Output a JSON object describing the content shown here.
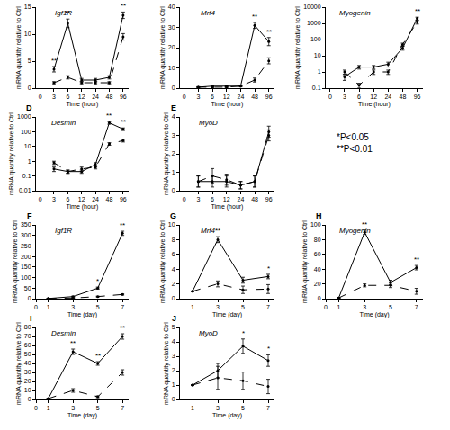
{
  "notes": [
    "*P<0.05",
    "**P<0.01"
  ],
  "chart_data": [
    {
      "type": "line",
      "panel": "A",
      "title": "Igf1R",
      "x_label": "Time (hour)",
      "y_label": "mRNA quantity relative to Ctrl",
      "categories": [
        "0",
        "3",
        "6",
        "12",
        "24",
        "48",
        "96"
      ],
      "series": [
        {
          "color": "#000000",
          "line_style": "solid",
          "marker": "circle",
          "values": [
            null,
            3.5,
            12,
            1.5,
            1.5,
            2,
            13.5
          ],
          "errors": [
            null,
            0.5,
            0.8,
            0.3,
            0.3,
            0.3,
            0.6
          ]
        },
        {
          "color": "#000000",
          "line_style": "dashed",
          "marker": "circle",
          "values": [
            null,
            1,
            2,
            1,
            1,
            1,
            9.5
          ],
          "errors": [
            null,
            0.2,
            0.3,
            0.2,
            0.2,
            0.2,
            0.6
          ]
        }
      ],
      "ylim": [
        0,
        15
      ],
      "yticks": [
        0,
        5,
        10,
        15
      ],
      "grid": false,
      "annotations": [
        {
          "x": "3",
          "text": "**"
        },
        {
          "x": "6",
          "text": "**"
        },
        {
          "x": "96",
          "text": "**"
        }
      ]
    },
    {
      "type": "line",
      "panel": "B",
      "title": "Mrf4",
      "x_label": "Time (hour)",
      "y_label": "mRNA quantity relative to Ctrl",
      "categories": [
        "0",
        "3",
        "6",
        "12",
        "24",
        "48",
        "96"
      ],
      "series": [
        {
          "color": "#000000",
          "line_style": "solid",
          "marker": "circle",
          "values": [
            null,
            0.5,
            1,
            1,
            1,
            31,
            23
          ],
          "errors": [
            null,
            0.2,
            0.2,
            0.2,
            0.2,
            1.5,
            2
          ]
        },
        {
          "color": "#000000",
          "line_style": "dashed",
          "marker": "circle",
          "values": [
            null,
            0.5,
            0.5,
            0.5,
            1,
            4,
            13.5
          ],
          "errors": [
            null,
            0.2,
            0.2,
            0.2,
            0.2,
            1,
            1.5
          ]
        }
      ],
      "ylim": [
        0,
        40
      ],
      "yticks": [
        0,
        10,
        20,
        30,
        40
      ],
      "grid": false,
      "annotations": [
        {
          "x": "48",
          "text": "**"
        },
        {
          "x": "96",
          "text": "**"
        }
      ]
    },
    {
      "type": "line",
      "panel": "C",
      "title": "Myogenin",
      "x_label": "Time (hour)",
      "y_label": "mRNA quantity relative to Ctrl",
      "categories": [
        "0",
        "3",
        "6",
        "12",
        "24",
        "48",
        "96"
      ],
      "series": [
        {
          "color": "#000000",
          "line_style": "solid",
          "marker": "circle",
          "values": [
            null,
            0.5,
            2,
            2,
            3,
            30,
            2000
          ],
          "errors": [
            null,
            0.2,
            0.5,
            0.5,
            1,
            8,
            400
          ]
        },
        {
          "color": "#000000",
          "line_style": "dashed",
          "marker": "circle",
          "values": [
            null,
            1,
            0.15,
            1,
            1,
            50,
            1200
          ],
          "errors": [
            null,
            0.3,
            0.05,
            0.3,
            0.3,
            10,
            300
          ]
        }
      ],
      "log": "y",
      "ylim": [
        0.1,
        10000
      ],
      "yticks": [
        0.1,
        1,
        10,
        100,
        1000,
        10000
      ],
      "grid": false,
      "annotations": [
        {
          "x": "96",
          "text": "**"
        }
      ]
    },
    {
      "type": "line",
      "panel": "D",
      "title": "Desmin",
      "x_label": "Time (hour)",
      "y_label": "mRNA quantity relative to Ctrl",
      "categories": [
        "0",
        "3",
        "6",
        "12",
        "24",
        "48",
        "96"
      ],
      "series": [
        {
          "color": "#000000",
          "line_style": "solid",
          "marker": "circle",
          "values": [
            null,
            0.3,
            0.2,
            0.2,
            0.6,
            400,
            150
          ],
          "errors": [
            null,
            0.1,
            0.05,
            0.05,
            0.2,
            80,
            30
          ]
        },
        {
          "color": "#000000",
          "line_style": "dashed",
          "marker": "circle",
          "values": [
            null,
            0.8,
            0.2,
            0.3,
            0.4,
            15,
            25
          ],
          "errors": [
            null,
            0.2,
            0.05,
            0.1,
            0.1,
            3,
            5
          ]
        }
      ],
      "log": "y",
      "ylim": [
        0.01,
        1000
      ],
      "yticks": [
        0.01,
        0.1,
        1,
        10,
        100,
        1000
      ],
      "grid": false,
      "annotations": [
        {
          "x": "48",
          "text": "**"
        },
        {
          "x": "96",
          "text": "**"
        }
      ]
    },
    {
      "type": "line",
      "panel": "E",
      "title": "MyoD",
      "x_label": "Time (hour)",
      "y_label": "mRNA quantity relative to Ctrl",
      "categories": [
        "0",
        "3",
        "6",
        "12",
        "24",
        "48",
        "96"
      ],
      "series": [
        {
          "color": "#000000",
          "line_style": "solid",
          "marker": "circle",
          "values": [
            null,
            0.5,
            0.5,
            0.5,
            0.3,
            0.5,
            3.2
          ],
          "errors": [
            null,
            0.3,
            0.3,
            0.3,
            0.2,
            0.3,
            0.3
          ]
        },
        {
          "color": "#000000",
          "line_style": "dashed",
          "marker": "circle",
          "values": [
            null,
            0.5,
            0.8,
            0.6,
            0.3,
            0.5,
            3
          ],
          "errors": [
            null,
            0.3,
            0.4,
            0.3,
            0.2,
            0.3,
            0.3
          ]
        }
      ],
      "ylim": [
        0,
        4
      ],
      "yticks": [
        0,
        1,
        2,
        3,
        4
      ],
      "grid": false
    },
    {
      "type": "line",
      "panel": "F",
      "title": "Igf1R",
      "x_label": "Time (day)",
      "y_label": "mRNA quantity relative to Ctrl",
      "x": [
        1,
        3,
        5,
        7
      ],
      "series": [
        {
          "color": "#000000",
          "line_style": "solid",
          "marker": "circle",
          "values": [
            1,
            10,
            50,
            310
          ],
          "errors": [
            0,
            2,
            5,
            10
          ]
        },
        {
          "color": "#000000",
          "line_style": "dashed",
          "marker": "circle",
          "values": [
            1,
            3,
            10,
            20
          ],
          "errors": [
            0,
            1,
            2,
            3
          ]
        }
      ],
      "xlim": [
        0,
        7.5
      ],
      "xticks": [
        0,
        1,
        3,
        5,
        7
      ],
      "ylim": [
        0,
        350
      ],
      "yticks": [
        0,
        50,
        100,
        150,
        200,
        250,
        300,
        350
      ],
      "grid": false,
      "annotations": [
        {
          "x": 5,
          "text": "*"
        },
        {
          "x": 7,
          "text": "**"
        }
      ]
    },
    {
      "type": "line",
      "panel": "G",
      "title": "Mrf4",
      "x_label": "Time (day)",
      "y_label": "mRNA quantity relative to Ctrl",
      "x": [
        1,
        3,
        5,
        7
      ],
      "series": [
        {
          "color": "#000000",
          "line_style": "solid",
          "marker": "circle",
          "values": [
            1,
            8,
            2.5,
            3
          ],
          "errors": [
            0,
            0.4,
            0.4,
            0.3
          ]
        },
        {
          "color": "#000000",
          "line_style": "dashed",
          "marker": "circle",
          "values": [
            1,
            2,
            1.2,
            1.3
          ],
          "errors": [
            0,
            0.4,
            0.5,
            0.6
          ]
        }
      ],
      "xlim": [
        0,
        7.5
      ],
      "xticks": [
        1,
        3,
        5,
        7
      ],
      "ylim": [
        0,
        10
      ],
      "yticks": [
        0,
        2,
        4,
        6,
        8,
        10
      ],
      "grid": false,
      "annotations": [
        {
          "x": 3,
          "text": "**"
        },
        {
          "x": 7,
          "text": "*"
        }
      ]
    },
    {
      "type": "line",
      "panel": "H",
      "title": "Myogenin",
      "x_label": "Time (day)",
      "y_label": "mRNA quantity relative to Ctrl",
      "x": [
        1,
        3,
        5,
        7
      ],
      "series": [
        {
          "color": "#000000",
          "line_style": "solid",
          "marker": "circle",
          "values": [
            1,
            90,
            22,
            42
          ],
          "errors": [
            0,
            3,
            3,
            3
          ]
        },
        {
          "color": "#000000",
          "line_style": "dashed",
          "marker": "circle",
          "values": [
            1,
            18,
            18,
            10
          ],
          "errors": [
            0,
            2,
            3,
            4
          ]
        }
      ],
      "xlim": [
        0,
        7.5
      ],
      "xticks": [
        0,
        1,
        3,
        5,
        7
      ],
      "ylim": [
        0,
        100
      ],
      "yticks": [
        0,
        20,
        40,
        60,
        80,
        100
      ],
      "grid": false,
      "annotations": [
        {
          "x": 3,
          "text": "**"
        },
        {
          "x": 7,
          "text": "**"
        }
      ]
    },
    {
      "type": "line",
      "panel": "I",
      "title": "Desmin",
      "x_label": "Time (day)",
      "y_label": "mRNA quantity relative to Ctrl",
      "x": [
        1,
        3,
        5,
        7
      ],
      "series": [
        {
          "color": "#000000",
          "line_style": "solid",
          "marker": "circle",
          "values": [
            1,
            53,
            40,
            70
          ],
          "errors": [
            0,
            3,
            2,
            3
          ]
        },
        {
          "color": "#000000",
          "line_style": "dashed",
          "marker": "circle",
          "values": [
            1,
            10,
            3,
            30
          ],
          "errors": [
            0,
            2,
            1,
            3
          ]
        }
      ],
      "xlim": [
        0,
        7.5
      ],
      "xticks": [
        0,
        1,
        3,
        5,
        7
      ],
      "ylim": [
        0,
        80
      ],
      "yticks": [
        0,
        10,
        20,
        30,
        40,
        50,
        60,
        70,
        80
      ],
      "grid": false,
      "annotations": [
        {
          "x": 3,
          "text": "**"
        },
        {
          "x": 5,
          "text": "**"
        },
        {
          "x": 7,
          "text": "**"
        }
      ]
    },
    {
      "type": "line",
      "panel": "J",
      "title": "MyoD",
      "x_label": "Time (day)",
      "y_label": "mRNA quantity relative to Ctrl",
      "x": [
        1,
        3,
        5,
        7
      ],
      "series": [
        {
          "color": "#000000",
          "line_style": "solid",
          "marker": "circle",
          "values": [
            1,
            2,
            3.7,
            2.7
          ],
          "errors": [
            0,
            0.5,
            0.5,
            0.4
          ]
        },
        {
          "color": "#000000",
          "line_style": "dashed",
          "marker": "circle",
          "values": [
            1,
            1.5,
            1.3,
            0.9
          ],
          "errors": [
            0,
            0.8,
            0.6,
            0.5
          ]
        }
      ],
      "xlim": [
        0,
        7.5
      ],
      "xticks": [
        1,
        3,
        5,
        7
      ],
      "ylim": [
        0,
        5
      ],
      "yticks": [
        0,
        1,
        2,
        3,
        4,
        5
      ],
      "grid": false,
      "annotations": [
        {
          "x": 5,
          "text": "*"
        },
        {
          "x": 7,
          "text": "*"
        }
      ]
    }
  ]
}
